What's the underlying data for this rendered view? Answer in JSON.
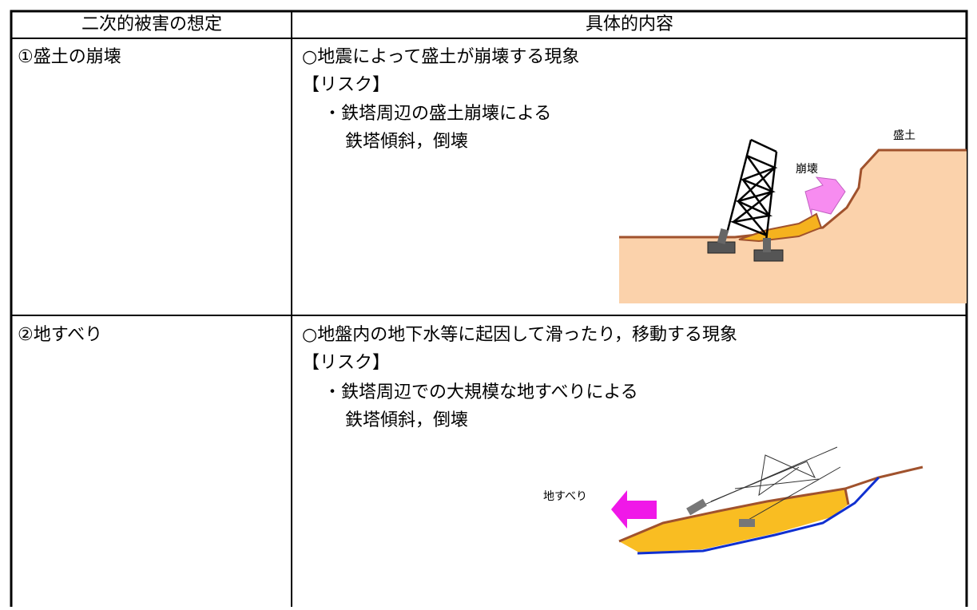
{
  "table": {
    "headers": [
      "二次的被害の想定",
      "具体的内容"
    ],
    "rows": [
      {
        "title": "①盛土の崩壊",
        "lines": [
          "○地震によって盛土が崩壊する現象",
          "【リスク】",
          "・鉄塔周辺の盛土崩壊による",
          "鉄塔傾斜，倒壊"
        ],
        "figure_labels": [
          "盛土",
          "崩壊"
        ]
      },
      {
        "title": "②地すべり",
        "lines": [
          "○地盤内の地下水等に起因して滑ったり，移動する現象",
          "【リスク】",
          "・鉄塔周辺での大規模な地すべりによる",
          "鉄塔傾斜，倒壊"
        ],
        "figure_labels": [
          "地すべり"
        ]
      }
    ]
  }
}
